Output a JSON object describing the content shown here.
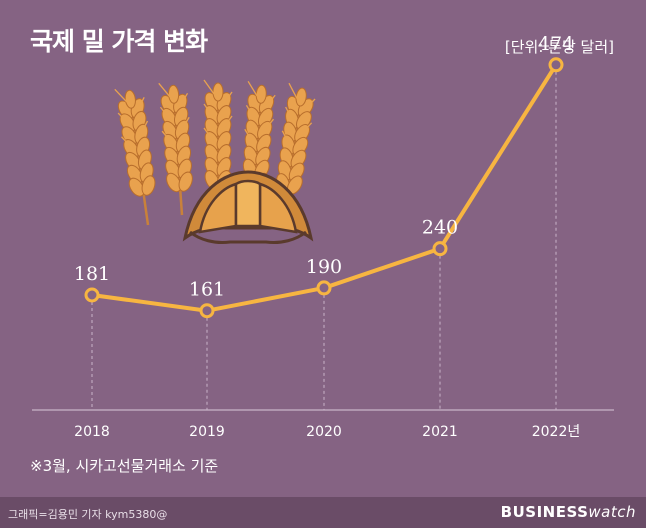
{
  "header": {
    "title": "국제 밀 가격 변화",
    "unit": "[단위: 톤당 달러]"
  },
  "note": "※3월, 시카고선물거래소 기준",
  "footer": {
    "credit": "그래픽=김용민 기자 kym5380@",
    "logo_bold": "BUSINESS",
    "logo_light": "watch"
  },
  "colors": {
    "background": "#856383",
    "line": "#f7b541",
    "marker_fill": "#856383",
    "text": "#ffffff"
  },
  "illustration": [
    "wheat-icon",
    "croissant-icon"
  ],
  "chart_data": {
    "type": "line",
    "categories": [
      "2018",
      "2019",
      "2020",
      "2021",
      "2022년"
    ],
    "values": [
      181,
      161,
      190,
      240,
      474
    ],
    "title": "국제 밀 가격 변화",
    "xlabel": "",
    "ylabel": "",
    "unit": "[단위: 톤당 달러]",
    "ylim": [
      0,
      500
    ],
    "grid": false,
    "data_labels": true,
    "legend": "none"
  }
}
